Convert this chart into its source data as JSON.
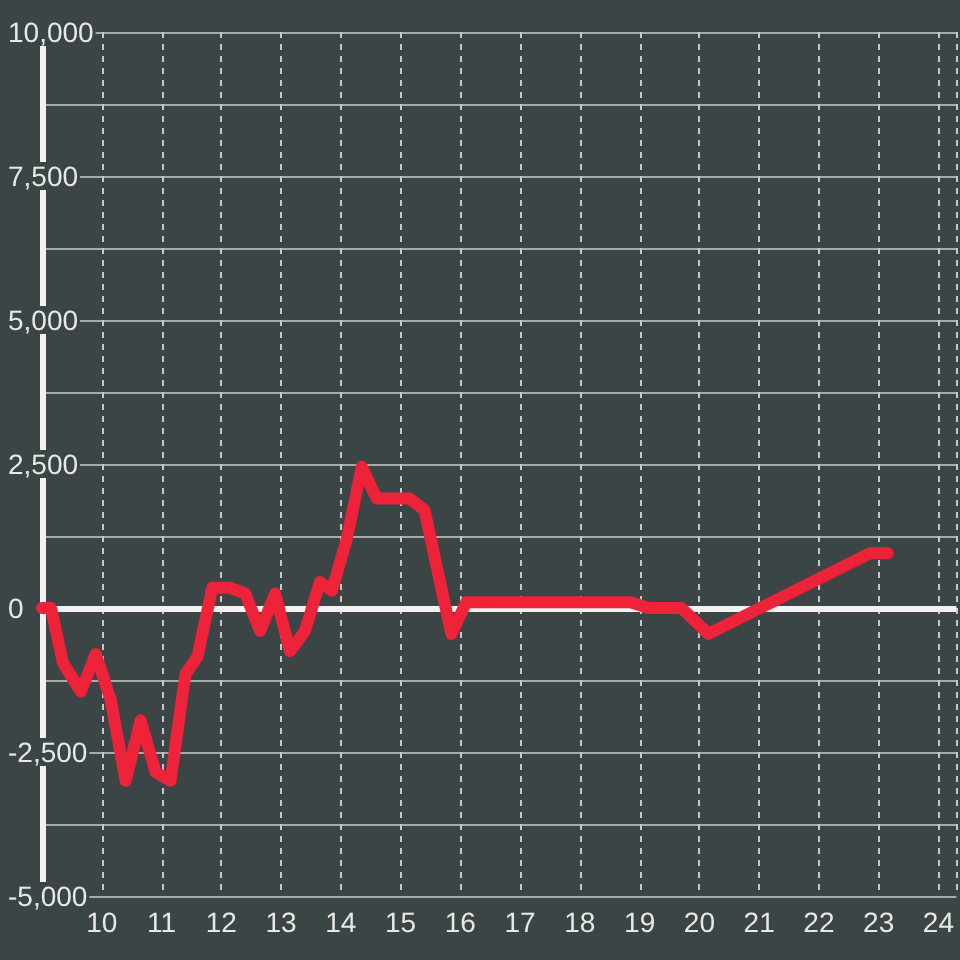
{
  "chart_data": {
    "type": "line",
    "x": [
      9,
      9.15,
      9.35,
      9.65,
      9.9,
      10.15,
      10.4,
      10.65,
      10.9,
      11.15,
      11.4,
      11.6,
      11.85,
      12.15,
      12.4,
      12.65,
      12.9,
      13.15,
      13.4,
      13.65,
      13.85,
      14.1,
      14.35,
      14.6,
      15.15,
      15.4,
      15.65,
      15.85,
      16.1,
      18.85,
      19.15,
      19.7,
      20.15,
      22.85,
      23.15
    ],
    "series": [
      {
        "color": "#ee2238",
        "values": [
          0,
          0,
          -950,
          -1450,
          -800,
          -1600,
          -3000,
          -1950,
          -2850,
          -3000,
          -1150,
          -850,
          350,
          350,
          250,
          -400,
          250,
          -750,
          -400,
          450,
          300,
          1200,
          2450,
          1900,
          1900,
          1700,
          500,
          -450,
          100,
          100,
          0,
          0,
          -450,
          950,
          950
        ]
      }
    ],
    "xlim": [
      9,
      24.3
    ],
    "xticks": [
      10,
      11,
      12,
      13,
      14,
      15,
      16,
      17,
      18,
      19,
      20,
      21,
      22,
      23,
      24
    ],
    "ylim": [
      -5000,
      10000
    ],
    "yticks": [
      {
        "value": -5000,
        "label": "-5,000"
      },
      {
        "value": -3750,
        "label": null
      },
      {
        "value": -2500,
        "label": "-2,500"
      },
      {
        "value": -1250,
        "label": null
      },
      {
        "value": 0,
        "label": "0"
      },
      {
        "value": 1250,
        "label": null
      },
      {
        "value": 2500,
        "label": "2,500"
      },
      {
        "value": 3750,
        "label": null
      },
      {
        "value": 5000,
        "label": "5,000"
      },
      {
        "value": 6250,
        "label": null
      },
      {
        "value": 7500,
        "label": "7,500"
      },
      {
        "value": 8750,
        "label": null
      },
      {
        "value": 10000,
        "label": "10,000"
      }
    ],
    "grid": true,
    "marker": "none",
    "line_style": "solid",
    "ref_lines": [
      {
        "axis": "y",
        "value": 0,
        "color": "#f2f2f2"
      }
    ]
  }
}
